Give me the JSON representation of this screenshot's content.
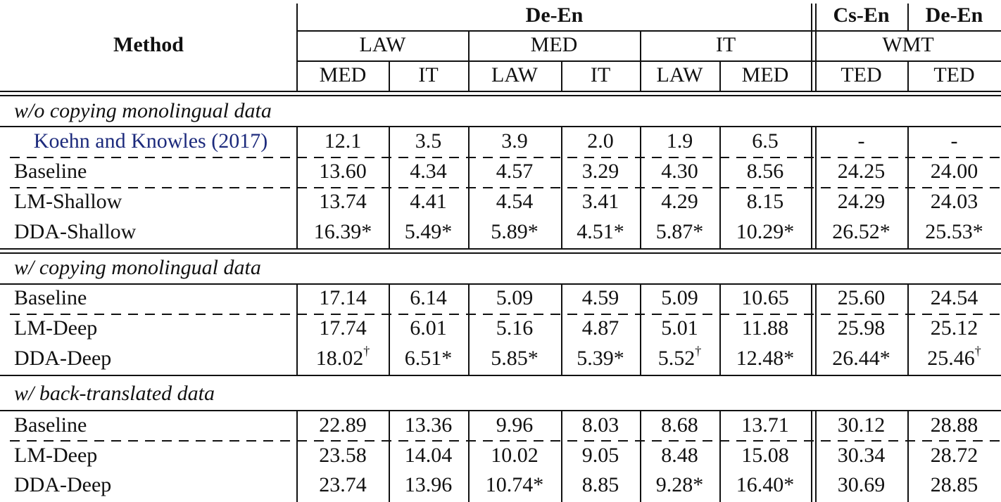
{
  "header": {
    "method_label": "Method",
    "group_deen": "De-En",
    "group_csen": "Cs-En",
    "group_deen2": "De-En",
    "source_domains": [
      "LAW",
      "MED",
      "IT",
      "WMT"
    ],
    "target_domains": [
      "MED",
      "IT",
      "LAW",
      "IT",
      "LAW",
      "MED",
      "TED",
      "TED"
    ]
  },
  "sections": [
    {
      "title": "w/o copying monolingual data",
      "rows": [
        {
          "method": "Koehn and Knowles (2017)",
          "values": [
            "12.1",
            "3.5",
            "3.9",
            "2.0",
            "1.9",
            "6.5",
            "-",
            "-"
          ]
        },
        {
          "method": "Baseline",
          "values": [
            "13.60",
            "4.34",
            "4.57",
            "3.29",
            "4.30",
            "8.56",
            "24.25",
            "24.00"
          ]
        },
        {
          "method": "LM-Shallow",
          "values": [
            "13.74",
            "4.41",
            "4.54",
            "3.41",
            "4.29",
            "8.15",
            "24.29",
            "24.03"
          ]
        },
        {
          "method": "DDA-Shallow",
          "values": [
            "16.39*",
            "5.49*",
            "5.89*",
            "4.51*",
            "5.87*",
            "10.29*",
            "26.52*",
            "25.53*"
          ]
        }
      ]
    },
    {
      "title": "w/ copying monolingual data",
      "rows": [
        {
          "method": "Baseline",
          "values": [
            "17.14",
            "6.14",
            "5.09",
            "4.59",
            "5.09",
            "10.65",
            "25.60",
            "24.54"
          ]
        },
        {
          "method": "LM-Deep",
          "values": [
            "17.74",
            "6.01",
            "5.16",
            "4.87",
            "5.01",
            "11.88",
            "25.98",
            "25.12"
          ]
        },
        {
          "method": "DDA-Deep",
          "values": [
            "18.02†",
            "6.51*",
            "5.85*",
            "5.39*",
            "5.52†",
            "12.48*",
            "26.44*",
            "25.46†"
          ]
        }
      ]
    },
    {
      "title": "w/ back-translated data",
      "rows": [
        {
          "method": "Baseline",
          "values": [
            "22.89",
            "13.36",
            "9.96",
            "8.03",
            "8.68",
            "13.71",
            "30.12",
            "28.88"
          ]
        },
        {
          "method": "LM-Deep",
          "values": [
            "23.58",
            "14.04",
            "10.02",
            "9.05",
            "8.48",
            "15.08",
            "30.34",
            "28.72"
          ]
        },
        {
          "method": "DDA-Deep",
          "values": [
            "23.74",
            "13.96",
            "10.74*",
            "8.85",
            "9.28*",
            "16.40*",
            "30.69",
            "28.85"
          ]
        }
      ]
    }
  ]
}
